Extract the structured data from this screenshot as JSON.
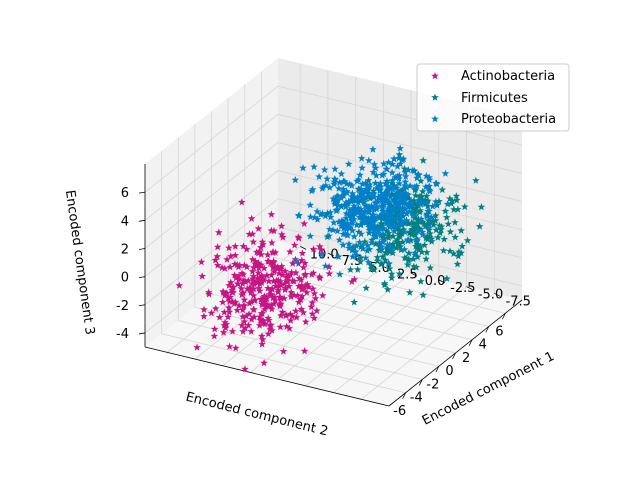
{
  "chart_data": {
    "type": "scatter",
    "projection": "3d",
    "marker": "star",
    "title": "",
    "xlabel": "Encoded component 1",
    "ylabel": "Encoded component 2",
    "zlabel": "Encoded component 3",
    "xlim": [
      -10,
      12
    ],
    "ylim": [
      -8,
      8
    ],
    "zlim": [
      -5,
      8
    ],
    "xticks": [
      "-7.5",
      "-5.0",
      "-2.5",
      "0.0",
      "2.5",
      "5.0",
      "7.5",
      "10.0"
    ],
    "yticks": [
      "-6",
      "-4",
      "-2",
      "0",
      "2",
      "4",
      "6"
    ],
    "zticks": [
      "-4",
      "-2",
      "0",
      "2",
      "4",
      "6"
    ],
    "grid": true,
    "legend_position": "top-right",
    "series": [
      {
        "name": "Actinobacteria",
        "color": "#c71585",
        "center": [
          4.5,
          -3.5,
          -1.5
        ],
        "spread": [
          2.2,
          2.0,
          1.6
        ],
        "count": 340
      },
      {
        "name": "Firmicutes",
        "color": "#008080",
        "center": [
          -2.0,
          5.0,
          0.0
        ],
        "spread": [
          2.0,
          2.0,
          1.5
        ],
        "count": 330
      },
      {
        "name": "Proteobacteria",
        "color": "#0080c8",
        "center": [
          -5.0,
          -3.5,
          6.0
        ],
        "spread": [
          2.0,
          2.0,
          1.2
        ],
        "count": 420
      }
    ]
  }
}
